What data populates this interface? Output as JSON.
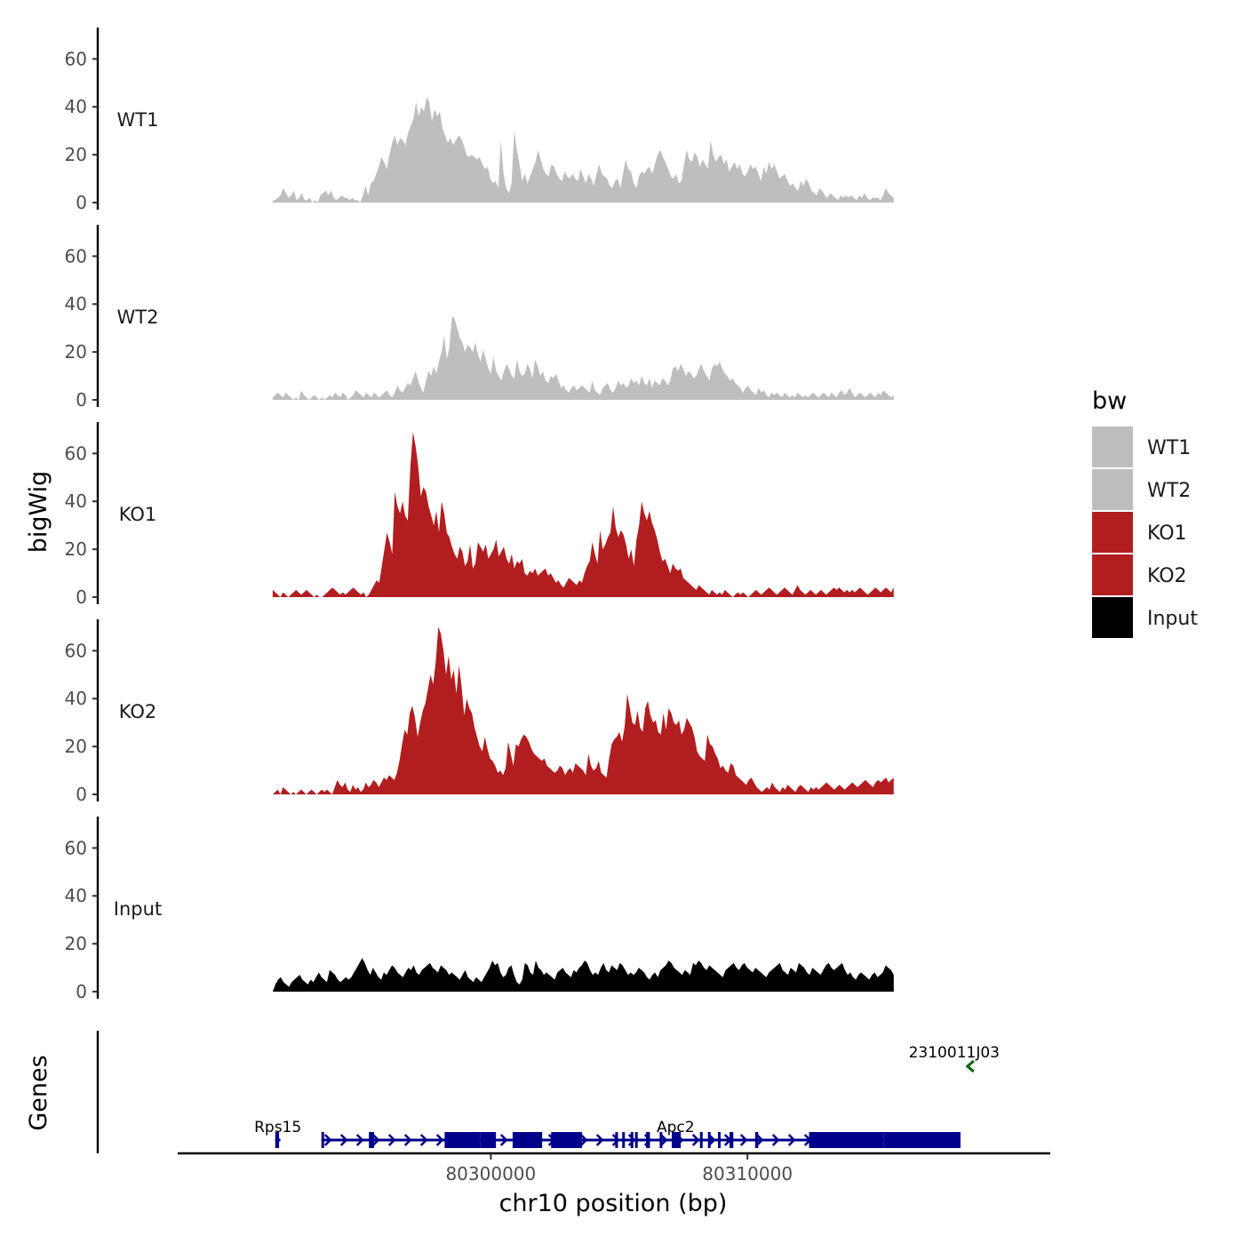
{
  "chart_data": {
    "type": "area",
    "x_axis": {
      "label": "chr10 position (bp)",
      "chromosome": "chr10",
      "range": [
        80287800,
        80321800
      ],
      "ticks": [
        80300000,
        80310000
      ],
      "tick_labels": [
        "80300000",
        "80310000"
      ]
    },
    "y_axis": {
      "label": "bigWig",
      "range": [
        0,
        72
      ],
      "ticks": [
        0,
        20,
        40,
        60
      ],
      "tick_labels": [
        "0",
        "20",
        "40",
        "60"
      ]
    },
    "data_x_range": [
      80291500,
      80315700
    ],
    "series": [
      {
        "name": "WT1",
        "color": "#bebebe",
        "values": [
          1,
          1,
          2,
          3,
          6,
          4,
          2,
          3,
          5,
          1,
          2,
          4,
          1,
          1,
          2,
          0,
          1,
          0,
          3,
          4,
          5,
          3,
          5,
          2,
          1,
          2,
          3,
          2,
          2,
          1,
          2,
          1,
          1,
          0,
          3,
          7,
          3,
          8,
          9,
          12,
          15,
          19,
          17,
          14,
          20,
          25,
          28,
          24,
          27,
          26,
          24,
          29,
          32,
          35,
          42,
          36,
          40,
          38,
          44,
          42,
          34,
          39,
          36,
          38,
          31,
          28,
          25,
          27,
          24,
          26,
          28,
          27,
          24,
          20,
          19,
          20,
          19,
          18,
          19,
          16,
          14,
          15,
          10,
          8,
          9,
          6,
          26,
          12,
          6,
          4,
          8,
          30,
          22,
          16,
          9,
          12,
          8,
          11,
          14,
          17,
          22,
          18,
          14,
          12,
          11,
          16,
          15,
          12,
          10,
          9,
          13,
          11,
          10,
          12,
          10,
          9,
          14,
          11,
          8,
          12,
          10,
          7,
          12,
          16,
          12,
          11,
          10,
          7,
          6,
          9,
          10,
          6,
          12,
          18,
          14,
          13,
          8,
          6,
          11,
          13,
          12,
          14,
          15,
          12,
          16,
          20,
          22,
          19,
          17,
          14,
          11,
          10,
          12,
          8,
          9,
          16,
          22,
          18,
          17,
          21,
          19,
          15,
          18,
          16,
          14,
          26,
          20,
          17,
          19,
          20,
          16,
          18,
          13,
          15,
          17,
          14,
          16,
          12,
          11,
          13,
          16,
          14,
          15,
          12,
          9,
          15,
          12,
          17,
          14,
          16,
          13,
          10,
          11,
          12,
          9,
          7,
          8,
          6,
          5,
          9,
          7,
          10,
          8,
          5,
          4,
          3,
          6,
          5,
          3,
          2,
          4,
          3,
          2,
          1,
          3,
          2,
          3,
          2,
          3,
          2,
          1,
          3,
          2,
          4,
          2,
          1,
          2,
          2,
          2,
          1,
          3,
          6,
          4,
          3,
          2
        ]
      },
      {
        "name": "WT2",
        "color": "#bebebe",
        "values": [
          1,
          2,
          3,
          2,
          1,
          3,
          2,
          1,
          0,
          1,
          0,
          4,
          2,
          1,
          0,
          1,
          2,
          1,
          0,
          1,
          0,
          1,
          2,
          1,
          3,
          2,
          1,
          3,
          2,
          0,
          1,
          2,
          4,
          3,
          2,
          1,
          3,
          2,
          1,
          3,
          2,
          1,
          2,
          3,
          4,
          2,
          1,
          3,
          6,
          4,
          3,
          5,
          7,
          6,
          9,
          12,
          8,
          5,
          3,
          8,
          12,
          10,
          14,
          11,
          16,
          20,
          27,
          17,
          22,
          35,
          34,
          30,
          26,
          24,
          20,
          23,
          22,
          20,
          24,
          19,
          16,
          21,
          17,
          13,
          11,
          18,
          12,
          10,
          8,
          12,
          15,
          13,
          10,
          9,
          17,
          12,
          10,
          11,
          15,
          13,
          9,
          17,
          14,
          10,
          12,
          8,
          7,
          10,
          9,
          11,
          8,
          5,
          6,
          4,
          3,
          5,
          6,
          4,
          5,
          6,
          5,
          4,
          3,
          8,
          4,
          3,
          2,
          5,
          6,
          7,
          4,
          3,
          5,
          8,
          6,
          7,
          5,
          6,
          9,
          7,
          8,
          6,
          10,
          7,
          6,
          9,
          5,
          8,
          7,
          6,
          9,
          8,
          6,
          8,
          13,
          14,
          12,
          15,
          13,
          10,
          12,
          11,
          9,
          10,
          13,
          15,
          12,
          10,
          8,
          13,
          15,
          14,
          16,
          13,
          11,
          10,
          8,
          9,
          7,
          6,
          5,
          3,
          5,
          6,
          4,
          3,
          2,
          5,
          3,
          4,
          2,
          1,
          3,
          2,
          3,
          2,
          1,
          3,
          2,
          1,
          2,
          1,
          3,
          2,
          1,
          2,
          1,
          2,
          3,
          2,
          1,
          2,
          3,
          2,
          1,
          3,
          2,
          1,
          3,
          4,
          2,
          3,
          5,
          3,
          1,
          2,
          3,
          2,
          1,
          2,
          3,
          2,
          1,
          3,
          2,
          4,
          3,
          2,
          1,
          2
        ]
      },
      {
        "name": "KO1",
        "color": "#b21e1f",
        "values": [
          3,
          2,
          1,
          0,
          2,
          1,
          0,
          1,
          2,
          3,
          2,
          1,
          2,
          3,
          2,
          1,
          0,
          1,
          0,
          0,
          1,
          2,
          3,
          4,
          3,
          2,
          1,
          2,
          1,
          2,
          3,
          4,
          3,
          2,
          1,
          2,
          0,
          1,
          3,
          5,
          7,
          6,
          13,
          20,
          27,
          23,
          18,
          44,
          38,
          35,
          40,
          34,
          32,
          55,
          69,
          63,
          55,
          42,
          46,
          44,
          38,
          34,
          30,
          36,
          27,
          40,
          35,
          27,
          25,
          21,
          18,
          16,
          21,
          19,
          13,
          15,
          22,
          12,
          14,
          23,
          21,
          19,
          22,
          16,
          18,
          20,
          24,
          17,
          19,
          21,
          16,
          14,
          18,
          12,
          15,
          14,
          16,
          10,
          9,
          11,
          10,
          12,
          9,
          10,
          11,
          12,
          9,
          10,
          8,
          6,
          7,
          5,
          4,
          6,
          8,
          7,
          6,
          5,
          7,
          6,
          10,
          13,
          15,
          23,
          18,
          14,
          28,
          20,
          22,
          25,
          27,
          38,
          29,
          25,
          28,
          26,
          22,
          16,
          20,
          13,
          24,
          30,
          40,
          35,
          32,
          36,
          31,
          28,
          24,
          19,
          15,
          16,
          13,
          10,
          14,
          12,
          11,
          12,
          8,
          7,
          6,
          5,
          4,
          3,
          5,
          4,
          3,
          2,
          1,
          3,
          2,
          1,
          2,
          1,
          3,
          2,
          1,
          0,
          1,
          2,
          1,
          2,
          1,
          0,
          1,
          2,
          3,
          2,
          1,
          2,
          3,
          4,
          3,
          2,
          1,
          2,
          3,
          4,
          3,
          2,
          1,
          3,
          5,
          3,
          2,
          1,
          2,
          3,
          2,
          1,
          2,
          3,
          2,
          1,
          2,
          3,
          4,
          3,
          4,
          3,
          2,
          3,
          2,
          3,
          2,
          3,
          4,
          3,
          2,
          1,
          2,
          3,
          4,
          3,
          2,
          3,
          4,
          3,
          2,
          4
        ]
      },
      {
        "name": "KO2",
        "color": "#b21e1f",
        "values": [
          0,
          1,
          2,
          0,
          3,
          2,
          1,
          0,
          1,
          0,
          1,
          2,
          1,
          0,
          1,
          2,
          1,
          0,
          1,
          2,
          1,
          2,
          1,
          0,
          3,
          6,
          4,
          3,
          5,
          2,
          1,
          4,
          2,
          3,
          1,
          2,
          5,
          3,
          4,
          6,
          5,
          3,
          5,
          7,
          6,
          8,
          7,
          6,
          9,
          14,
          21,
          27,
          25,
          34,
          37,
          32,
          24,
          30,
          35,
          38,
          44,
          50,
          46,
          55,
          70,
          67,
          60,
          50,
          58,
          48,
          52,
          42,
          54,
          45,
          33,
          40,
          36,
          34,
          28,
          24,
          20,
          18,
          24,
          19,
          15,
          14,
          12,
          9,
          10,
          8,
          11,
          22,
          17,
          12,
          21,
          20,
          23,
          25,
          24,
          22,
          19,
          17,
          16,
          15,
          14,
          15,
          12,
          11,
          10,
          9,
          10,
          12,
          11,
          8,
          10,
          11,
          9,
          13,
          12,
          11,
          10,
          8,
          17,
          12,
          10,
          11,
          14,
          9,
          8,
          7,
          15,
          21,
          23,
          24,
          26,
          22,
          28,
          42,
          36,
          30,
          29,
          35,
          28,
          26,
          36,
          39,
          33,
          30,
          31,
          26,
          25,
          34,
          27,
          36,
          34,
          30,
          29,
          31,
          25,
          27,
          32,
          30,
          28,
          24,
          18,
          16,
          15,
          14,
          25,
          21,
          20,
          17,
          15,
          11,
          12,
          10,
          9,
          13,
          12,
          8,
          7,
          6,
          5,
          4,
          6,
          7,
          5,
          3,
          2,
          1,
          2,
          3,
          2,
          5,
          3,
          2,
          1,
          3,
          2,
          4,
          3,
          2,
          1,
          3,
          4,
          3,
          2,
          1,
          3,
          2,
          3,
          2,
          3,
          4,
          5,
          4,
          3,
          2,
          3,
          4,
          3,
          2,
          3,
          4,
          5,
          4,
          3,
          4,
          5,
          6,
          5,
          4,
          3,
          5,
          6,
          5,
          6,
          7,
          5,
          6,
          7
        ]
      },
      {
        "name": "Input",
        "color": "#000000",
        "values": [
          0,
          3,
          5,
          6,
          4,
          3,
          2,
          4,
          5,
          6,
          7,
          5,
          4,
          3,
          5,
          4,
          6,
          8,
          6,
          5,
          4,
          9,
          8,
          7,
          5,
          4,
          5,
          6,
          5,
          6,
          8,
          10,
          12,
          14,
          12,
          9,
          7,
          10,
          8,
          6,
          5,
          8,
          7,
          9,
          11,
          10,
          8,
          7,
          6,
          8,
          10,
          9,
          11,
          8,
          7,
          9,
          10,
          11,
          12,
          10,
          9,
          8,
          11,
          10,
          9,
          7,
          8,
          7,
          6,
          5,
          7,
          9,
          6,
          5,
          4,
          6,
          5,
          4,
          6,
          8,
          10,
          13,
          11,
          12,
          8,
          6,
          7,
          10,
          11,
          7,
          4,
          3,
          5,
          12,
          11,
          8,
          7,
          13,
          10,
          9,
          7,
          8,
          7,
          6,
          5,
          8,
          9,
          10,
          8,
          7,
          6,
          9,
          8,
          10,
          11,
          13,
          12,
          9,
          7,
          8,
          7,
          10,
          12,
          9,
          8,
          11,
          10,
          9,
          12,
          11,
          9,
          7,
          8,
          7,
          8,
          10,
          9,
          8,
          6,
          5,
          7,
          8,
          6,
          9,
          10,
          11,
          13,
          12,
          10,
          9,
          8,
          7,
          9,
          8,
          7,
          12,
          11,
          13,
          12,
          10,
          9,
          11,
          10,
          9,
          8,
          7,
          6,
          9,
          10,
          11,
          12,
          10,
          9,
          11,
          12,
          10,
          9,
          8,
          10,
          9,
          8,
          7,
          6,
          8,
          9,
          10,
          11,
          12,
          9,
          8,
          7,
          10,
          9,
          8,
          12,
          11,
          10,
          8,
          7,
          10,
          9,
          8,
          7,
          9,
          11,
          12,
          10,
          9,
          10,
          11,
          12,
          9,
          7,
          8,
          6,
          5,
          7,
          8,
          7,
          6,
          5,
          7,
          8,
          6,
          7,
          8,
          11,
          10,
          9,
          7
        ]
      }
    ],
    "legend": {
      "title": "bw",
      "position": "right",
      "entries": [
        {
          "label": "WT1",
          "color": "#bebebe"
        },
        {
          "label": "WT2",
          "color": "#bebebe"
        },
        {
          "label": "KO1",
          "color": "#b21e1f"
        },
        {
          "label": "KO2",
          "color": "#b21e1f"
        },
        {
          "label": "Input",
          "color": "#000000"
        }
      ]
    },
    "genes_track": {
      "label": "Genes",
      "genes": [
        {
          "name": "Rps15",
          "strand": "+",
          "color": "#00008b",
          "start": 80291600,
          "end": 80291800,
          "exons": [
            [
              80291600,
              80291750
            ]
          ]
        },
        {
          "name": "Apc2",
          "strand": "+",
          "color": "#00008b",
          "start": 80293400,
          "end": 80318300,
          "exons": [
            [
              80293400,
              80293470
            ],
            [
              80295250,
              80295450
            ],
            [
              80298200,
              80299600
            ],
            [
              80299600,
              80300200
            ],
            [
              80300850,
              80302000
            ],
            [
              80302350,
              80303550
            ],
            [
              80304850,
              80304950
            ],
            [
              80305120,
              80305220
            ],
            [
              80305450,
              80305500
            ],
            [
              80305620,
              80305700
            ],
            [
              80306050,
              80306200
            ],
            [
              80306580,
              80306650
            ],
            [
              80307050,
              80307400
            ],
            [
              80308150,
              80308250
            ],
            [
              80308460,
              80308560
            ],
            [
              80308850,
              80308930
            ],
            [
              80309300,
              80309450
            ],
            [
              80310300,
              80310420
            ],
            [
              80312400,
              80315300
            ],
            [
              80315300,
              80318300
            ]
          ],
          "label_x": 80307200
        },
        {
          "name": "2310011J03",
          "strand": "-",
          "color": "#006400",
          "start": 80318400,
          "end": 80318700,
          "exons": []
        }
      ]
    }
  }
}
